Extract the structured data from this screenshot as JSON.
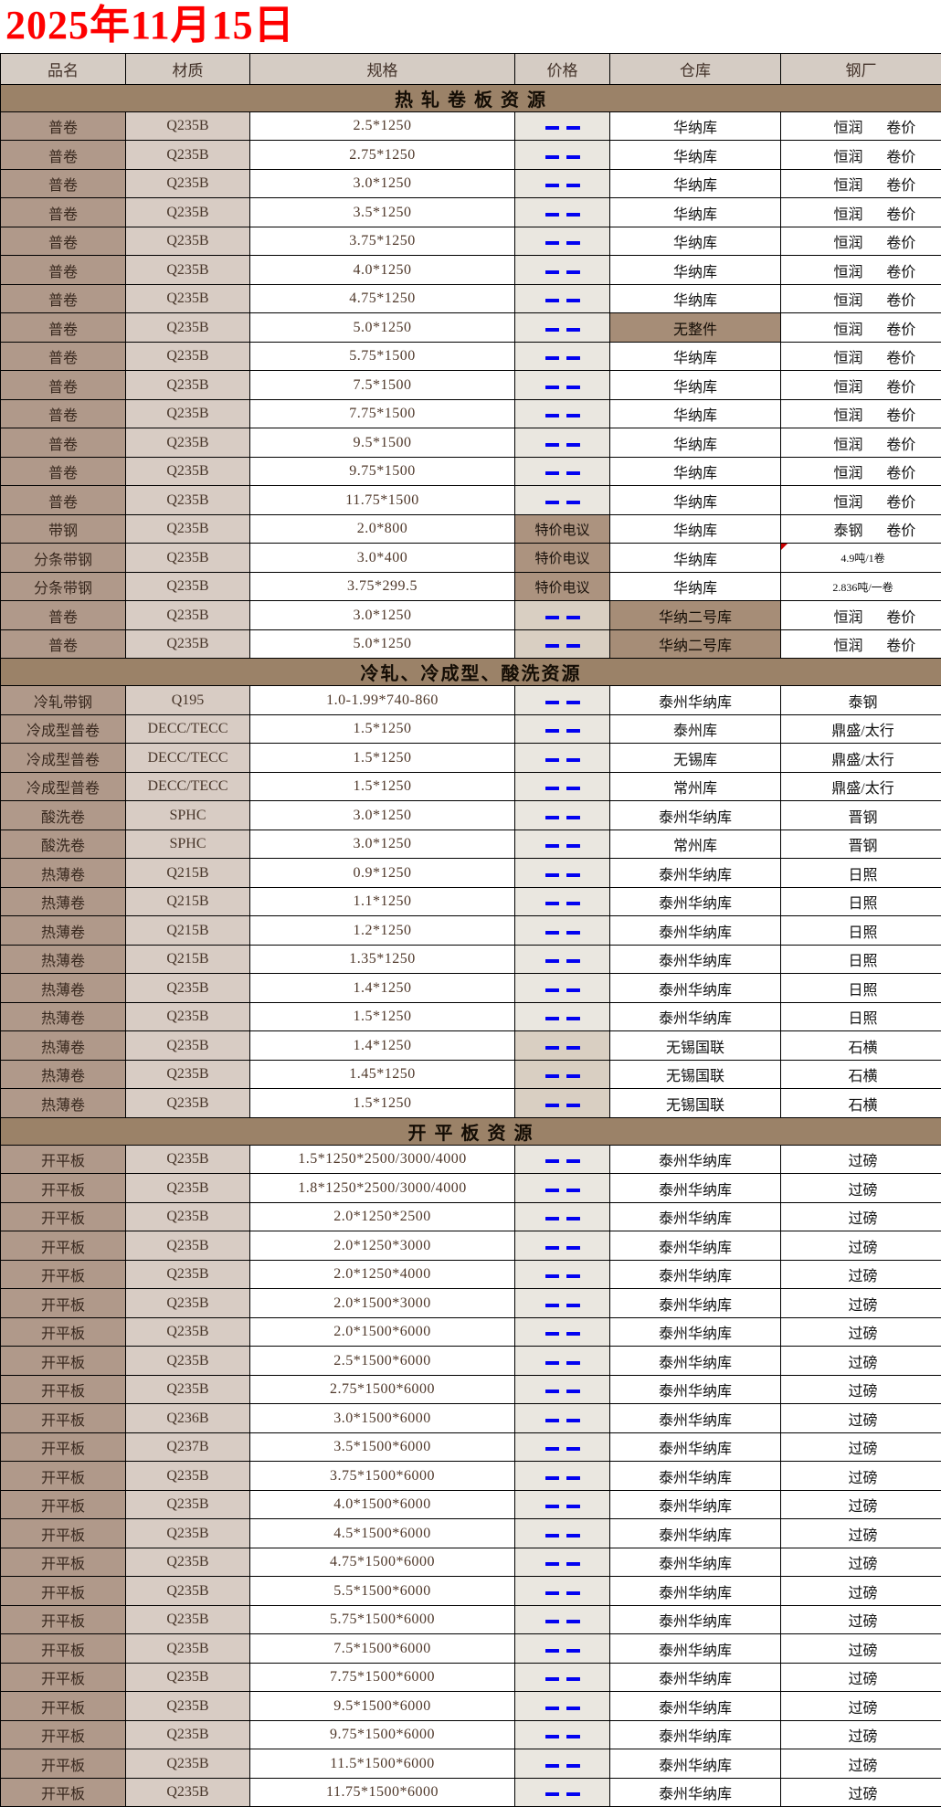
{
  "title": "2025年11月15日",
  "colors": {
    "title_red": "#fe0000",
    "dash_blue": "#0202f0",
    "section_band": "#9b8268",
    "name_col": "#b0998a",
    "material_col": "#d8ccc4",
    "header_bg": "#d5ccc4",
    "highlight_brown": "#a68d77",
    "deal_brown": "#ac937f",
    "price_gray": "#eae7e0",
    "price_tan": "#d9cfc2",
    "note_mark_red": "#cc0000"
  },
  "table": {
    "columns": [
      {
        "key": "name",
        "label": "品名"
      },
      {
        "key": "material",
        "label": "材质"
      },
      {
        "key": "spec",
        "label": "规格"
      },
      {
        "key": "price",
        "label": "价格"
      },
      {
        "key": "warehouse",
        "label": "仓库"
      },
      {
        "key": "mill",
        "label": "钢厂"
      }
    ],
    "no_price_symbol": "——",
    "sections": [
      {
        "title": "热 轧 卷 板 资 源",
        "rows": [
          {
            "name": "普卷",
            "material": "Q235B",
            "spec": "2.5*1250",
            "price": "——",
            "warehouse": "华纳库",
            "mill": "恒润",
            "mill_note": "卷价"
          },
          {
            "name": "普卷",
            "material": "Q235B",
            "spec": "2.75*1250",
            "price": "——",
            "warehouse": "华纳库",
            "mill": "恒润",
            "mill_note": "卷价"
          },
          {
            "name": "普卷",
            "material": "Q235B",
            "spec": "3.0*1250",
            "price": "——",
            "warehouse": "华纳库",
            "mill": "恒润",
            "mill_note": "卷价"
          },
          {
            "name": "普卷",
            "material": "Q235B",
            "spec": "3.5*1250",
            "price": "——",
            "warehouse": "华纳库",
            "mill": "恒润",
            "mill_note": "卷价"
          },
          {
            "name": "普卷",
            "material": "Q235B",
            "spec": "3.75*1250",
            "price": "——",
            "warehouse": "华纳库",
            "mill": "恒润",
            "mill_note": "卷价"
          },
          {
            "name": "普卷",
            "material": "Q235B",
            "spec": "4.0*1250",
            "price": "——",
            "warehouse": "华纳库",
            "mill": "恒润",
            "mill_note": "卷价"
          },
          {
            "name": "普卷",
            "material": "Q235B",
            "spec": "4.75*1250",
            "price": "——",
            "warehouse": "华纳库",
            "mill": "恒润",
            "mill_note": "卷价"
          },
          {
            "name": "普卷",
            "material": "Q235B",
            "spec": "5.0*1250",
            "price": "——",
            "warehouse": "无整件",
            "warehouse_hl": true,
            "mill": "恒润",
            "mill_note": "卷价"
          },
          {
            "name": "普卷",
            "material": "Q235B",
            "spec": "5.75*1500",
            "price": "——",
            "warehouse": "华纳库",
            "mill": "恒润",
            "mill_note": "卷价"
          },
          {
            "name": "普卷",
            "material": "Q235B",
            "spec": "7.5*1500",
            "price": "——",
            "warehouse": "华纳库",
            "mill": "恒润",
            "mill_note": "卷价"
          },
          {
            "name": "普卷",
            "material": "Q235B",
            "spec": "7.75*1500",
            "price": "——",
            "warehouse": "华纳库",
            "mill": "恒润",
            "mill_note": "卷价"
          },
          {
            "name": "普卷",
            "material": "Q235B",
            "spec": "9.5*1500",
            "price": "——",
            "warehouse": "华纳库",
            "mill": "恒润",
            "mill_note": "卷价"
          },
          {
            "name": "普卷",
            "material": "Q235B",
            "spec": "9.75*1500",
            "price": "——",
            "warehouse": "华纳库",
            "mill": "恒润",
            "mill_note": "卷价"
          },
          {
            "name": "普卷",
            "material": "Q235B",
            "spec": "11.75*1500",
            "price": "——",
            "warehouse": "华纳库",
            "mill": "恒润",
            "mill_note": "卷价"
          },
          {
            "name": "带钢",
            "material": "Q235B",
            "spec": "2.0*800",
            "price": "特价电议",
            "warehouse": "华纳库",
            "mill": "泰钢",
            "mill_note": "卷价"
          },
          {
            "name": "分条带钢",
            "material": "Q235B",
            "spec": "3.0*400",
            "price": "特价电议",
            "warehouse": "华纳库",
            "mill": "4.9吨/1卷",
            "mill_small": true,
            "note_mark": true
          },
          {
            "name": "分条带钢",
            "material": "Q235B",
            "spec": "3.75*299.5",
            "price": "特价电议",
            "warehouse": "华纳库",
            "mill": "2.836吨/一卷",
            "mill_small": true
          },
          {
            "name": "普卷",
            "material": "Q235B",
            "spec": "3.0*1250",
            "price": "——",
            "price_bg": "tan",
            "warehouse": "华纳二号库",
            "warehouse_hl": true,
            "mill": "恒润",
            "mill_note": "卷价"
          },
          {
            "name": "普卷",
            "material": "Q235B",
            "spec": "5.0*1250",
            "price": "——",
            "price_bg": "tan",
            "warehouse": "华纳二号库",
            "warehouse_hl": true,
            "mill": "恒润",
            "mill_note": "卷价"
          }
        ]
      },
      {
        "title": "冷轧、冷成型、酸洗资源",
        "rows": [
          {
            "name": "冷轧带钢",
            "material": "Q195",
            "spec": "1.0-1.99*740-860",
            "price": "——",
            "warehouse": "泰州华纳库",
            "mill": "泰钢"
          },
          {
            "name": "冷成型普卷",
            "material": "DECC/TECC",
            "spec": "1.5*1250",
            "price": "——",
            "warehouse": "泰州库",
            "mill": "鼎盛/太行"
          },
          {
            "name": "冷成型普卷",
            "material": "DECC/TECC",
            "spec": "1.5*1250",
            "price": "——",
            "warehouse": "无锡库",
            "mill": "鼎盛/太行"
          },
          {
            "name": "冷成型普卷",
            "material": "DECC/TECC",
            "spec": "1.5*1250",
            "price": "——",
            "warehouse": "常州库",
            "mill": "鼎盛/太行"
          },
          {
            "name": "酸洗卷",
            "material": "SPHC",
            "spec": "3.0*1250",
            "price": "——",
            "warehouse": "泰州华纳库",
            "mill": "晋钢"
          },
          {
            "name": "酸洗卷",
            "material": "SPHC",
            "spec": "3.0*1250",
            "price": "——",
            "warehouse": "常州库",
            "mill": "晋钢"
          },
          {
            "name": "热薄卷",
            "material": "Q215B",
            "spec": "0.9*1250",
            "price": "——",
            "warehouse": "泰州华纳库",
            "mill": "日照"
          },
          {
            "name": "热薄卷",
            "material": "Q215B",
            "spec": "1.1*1250",
            "price": "——",
            "warehouse": "泰州华纳库",
            "mill": "日照"
          },
          {
            "name": "热薄卷",
            "material": "Q215B",
            "spec": "1.2*1250",
            "price": "——",
            "warehouse": "泰州华纳库",
            "mill": "日照"
          },
          {
            "name": "热薄卷",
            "material": "Q215B",
            "spec": "1.35*1250",
            "price": "——",
            "warehouse": "泰州华纳库",
            "mill": "日照"
          },
          {
            "name": "热薄卷",
            "material": "Q235B",
            "spec": "1.4*1250",
            "price": "——",
            "warehouse": "泰州华纳库",
            "mill": "日照"
          },
          {
            "name": "热薄卷",
            "material": "Q235B",
            "spec": "1.5*1250",
            "price": "——",
            "warehouse": "泰州华纳库",
            "mill": "日照"
          },
          {
            "name": "热薄卷",
            "material": "Q235B",
            "spec": "1.4*1250",
            "price": "——",
            "price_bg": "tan",
            "warehouse": "无锡国联",
            "mill": "石横"
          },
          {
            "name": "热薄卷",
            "material": "Q235B",
            "spec": "1.45*1250",
            "price": "——",
            "price_bg": "tan",
            "warehouse": "无锡国联",
            "mill": "石横"
          },
          {
            "name": "热薄卷",
            "material": "Q235B",
            "spec": "1.5*1250",
            "price": "——",
            "price_bg": "tan",
            "warehouse": "无锡国联",
            "mill": "石横"
          }
        ]
      },
      {
        "title": "开 平 板 资 源",
        "rows": [
          {
            "name": "开平板",
            "material": "Q235B",
            "spec": "1.5*1250*2500/3000/4000",
            "price": "——",
            "warehouse": "泰州华纳库",
            "mill": "过磅"
          },
          {
            "name": "开平板",
            "material": "Q235B",
            "spec": "1.8*1250*2500/3000/4000",
            "price": "——",
            "warehouse": "泰州华纳库",
            "mill": "过磅"
          },
          {
            "name": "开平板",
            "material": "Q235B",
            "spec": "2.0*1250*2500",
            "price": "——",
            "warehouse": "泰州华纳库",
            "mill": "过磅"
          },
          {
            "name": "开平板",
            "material": "Q235B",
            "spec": "2.0*1250*3000",
            "price": "——",
            "warehouse": "泰州华纳库",
            "mill": "过磅"
          },
          {
            "name": "开平板",
            "material": "Q235B",
            "spec": "2.0*1250*4000",
            "price": "——",
            "warehouse": "泰州华纳库",
            "mill": "过磅"
          },
          {
            "name": "开平板",
            "material": "Q235B",
            "spec": "2.0*1500*3000",
            "price": "——",
            "warehouse": "泰州华纳库",
            "mill": "过磅"
          },
          {
            "name": "开平板",
            "material": "Q235B",
            "spec": "2.0*1500*6000",
            "price": "——",
            "warehouse": "泰州华纳库",
            "mill": "过磅"
          },
          {
            "name": "开平板",
            "material": "Q235B",
            "spec": "2.5*1500*6000",
            "price": "——",
            "warehouse": "泰州华纳库",
            "mill": "过磅"
          },
          {
            "name": "开平板",
            "material": "Q235B",
            "spec": "2.75*1500*6000",
            "price": "——",
            "warehouse": "泰州华纳库",
            "mill": "过磅"
          },
          {
            "name": "开平板",
            "material": "Q236B",
            "spec": "3.0*1500*6000",
            "price": "——",
            "warehouse": "泰州华纳库",
            "mill": "过磅"
          },
          {
            "name": "开平板",
            "material": "Q237B",
            "spec": "3.5*1500*6000",
            "price": "——",
            "warehouse": "泰州华纳库",
            "mill": "过磅"
          },
          {
            "name": "开平板",
            "material": "Q235B",
            "spec": "3.75*1500*6000",
            "price": "——",
            "warehouse": "泰州华纳库",
            "mill": "过磅"
          },
          {
            "name": "开平板",
            "material": "Q235B",
            "spec": "4.0*1500*6000",
            "price": "——",
            "warehouse": "泰州华纳库",
            "mill": "过磅"
          },
          {
            "name": "开平板",
            "material": "Q235B",
            "spec": "4.5*1500*6000",
            "price": "——",
            "warehouse": "泰州华纳库",
            "mill": "过磅"
          },
          {
            "name": "开平板",
            "material": "Q235B",
            "spec": "4.75*1500*6000",
            "price": "——",
            "warehouse": "泰州华纳库",
            "mill": "过磅"
          },
          {
            "name": "开平板",
            "material": "Q235B",
            "spec": "5.5*1500*6000",
            "price": "——",
            "warehouse": "泰州华纳库",
            "mill": "过磅"
          },
          {
            "name": "开平板",
            "material": "Q235B",
            "spec": "5.75*1500*6000",
            "price": "——",
            "warehouse": "泰州华纳库",
            "mill": "过磅"
          },
          {
            "name": "开平板",
            "material": "Q235B",
            "spec": "7.5*1500*6000",
            "price": "——",
            "warehouse": "泰州华纳库",
            "mill": "过磅"
          },
          {
            "name": "开平板",
            "material": "Q235B",
            "spec": "7.75*1500*6000",
            "price": "——",
            "warehouse": "泰州华纳库",
            "mill": "过磅"
          },
          {
            "name": "开平板",
            "material": "Q235B",
            "spec": "9.5*1500*6000",
            "price": "——",
            "warehouse": "泰州华纳库",
            "mill": "过磅"
          },
          {
            "name": "开平板",
            "material": "Q235B",
            "spec": "9.75*1500*6000",
            "price": "——",
            "warehouse": "泰州华纳库",
            "mill": "过磅"
          },
          {
            "name": "开平板",
            "material": "Q235B",
            "spec": "11.5*1500*6000",
            "price": "——",
            "warehouse": "泰州华纳库",
            "mill": "过磅"
          },
          {
            "name": "开平板",
            "material": "Q235B",
            "spec": "11.75*1500*6000",
            "price": "——",
            "warehouse": "泰州华纳库",
            "mill": "过磅"
          }
        ]
      }
    ]
  }
}
